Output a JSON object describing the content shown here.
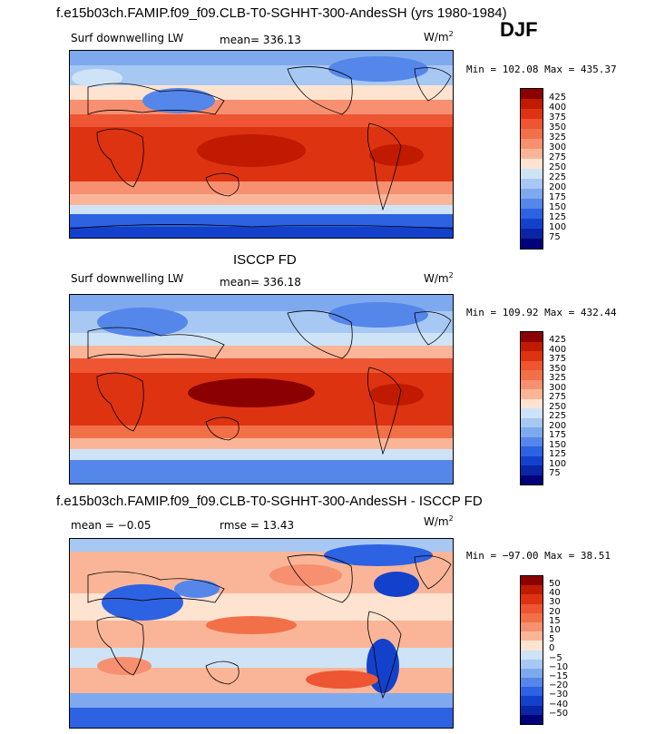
{
  "main_title": "f.e15b03ch.FAMIP.f09_f09.CLB-T0-SGHHT-300-AndesSH (yrs 1980-1984)",
  "season": "DJF",
  "panels": [
    {
      "id": "model",
      "section_title": "",
      "variable": "Surf downwelling LW",
      "stat1": "mean= 336.13",
      "stat2": "",
      "units": "W/m",
      "units_sup": "2",
      "minmax": "Min = 102.08 Max = 435.37",
      "colorbar": {
        "labels": [
          "425",
          "400",
          "375",
          "350",
          "325",
          "300",
          "275",
          "250",
          "225",
          "200",
          "175",
          "150",
          "125",
          "100",
          "75"
        ],
        "colors": [
          "#8b0000",
          "#c01a00",
          "#dd3311",
          "#ee5533",
          "#f27048",
          "#f79070",
          "#fab598",
          "#fde3d0",
          "#cfe3f7",
          "#a7c8f2",
          "#7fa9ee",
          "#5586ea",
          "#2d62e2",
          "#1441cc",
          "#0a25a5",
          "#00007a"
        ]
      }
    },
    {
      "id": "obs",
      "section_title": "ISCCP FD",
      "variable": "Surf downwelling LW",
      "stat1": "mean= 336.18",
      "stat2": "",
      "units": "W/m",
      "units_sup": "2",
      "minmax": "Min = 109.92 Max = 432.44",
      "colorbar": {
        "labels": [
          "425",
          "400",
          "375",
          "350",
          "325",
          "300",
          "275",
          "250",
          "225",
          "200",
          "175",
          "150",
          "125",
          "100",
          "75"
        ],
        "colors": [
          "#8b0000",
          "#c01a00",
          "#dd3311",
          "#ee5533",
          "#f27048",
          "#f79070",
          "#fab598",
          "#fde3d0",
          "#cfe3f7",
          "#a7c8f2",
          "#7fa9ee",
          "#5586ea",
          "#2d62e2",
          "#1441cc",
          "#0a25a5",
          "#00007a"
        ]
      }
    },
    {
      "id": "diff",
      "section_title": "f.e15b03ch.FAMIP.f09_f09.CLB-T0-SGHHT-300-AndesSH - ISCCP FD",
      "variable": "",
      "stat1": "mean =  −0.05",
      "stat2": "rmse =  13.43",
      "units": "W/m",
      "units_sup": "2",
      "minmax": "Min = −97.00 Max =  38.51",
      "colorbar": {
        "labels": [
          "50",
          "40",
          "30",
          "20",
          "15",
          "10",
          "5",
          "0",
          "−5",
          "−10",
          "−15",
          "−20",
          "−30",
          "−40",
          "−50"
        ],
        "colors": [
          "#8b0000",
          "#c01a00",
          "#dd3311",
          "#ee5533",
          "#f27048",
          "#f79070",
          "#fab598",
          "#fde3d0",
          "#cfe3f7",
          "#a7c8f2",
          "#7fa9ee",
          "#5586ea",
          "#2d62e2",
          "#1441cc",
          "#0a25a5",
          "#00007a"
        ]
      }
    }
  ]
}
